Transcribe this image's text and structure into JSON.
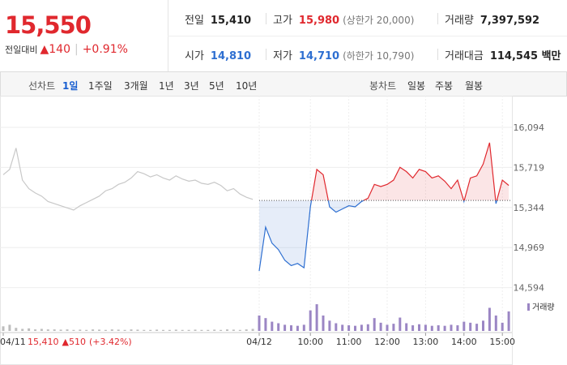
{
  "quote": {
    "price": "15,550",
    "change_label": "전일대비",
    "change": "▲140",
    "change_rate": "+0.91%"
  },
  "stats": [
    [
      {
        "label": "전일",
        "value": "15,410"
      },
      {
        "label": "고가",
        "value": "15,980",
        "note": "(상한가 20,000)"
      },
      {
        "label": "거래량",
        "value": "7,397,592"
      }
    ],
    [
      {
        "label": "시가",
        "value": "14,810"
      },
      {
        "label": "저가",
        "value": "14,710",
        "note": "(하한가 10,790)"
      },
      {
        "label": "거래대금",
        "value": "114,545 백만"
      }
    ]
  ],
  "tabs": {
    "line_label": "선차트",
    "periods": [
      "1일",
      "1주일",
      "3개월",
      "1년",
      "3년",
      "5년",
      "10년"
    ],
    "candle_label": "봉차트",
    "candle_periods": [
      "일봉",
      "주봉",
      "월봉"
    ]
  },
  "chart_data": {
    "type": "line",
    "categories": [
      "04/11",
      null,
      null,
      null,
      null,
      null,
      null,
      null,
      null,
      null,
      null,
      null,
      null,
      null,
      null,
      null,
      null,
      null,
      null,
      null,
      null,
      null,
      null,
      null,
      null,
      null,
      null,
      null,
      null,
      null,
      null,
      null,
      null,
      null,
      null,
      null,
      null,
      null,
      null,
      null,
      "04/12",
      null,
      null,
      null,
      null,
      null,
      null,
      null,
      "10:00",
      null,
      null,
      null,
      null,
      null,
      "11:00",
      null,
      null,
      null,
      null,
      null,
      "12:00",
      null,
      null,
      null,
      null,
      null,
      "13:00",
      null,
      null,
      null,
      null,
      null,
      "14:00",
      null,
      null,
      null,
      null,
      null,
      "15:00",
      null
    ],
    "series": [
      {
        "color": "#c8c8c8",
        "values": [
          15650,
          15700,
          15900,
          15600,
          15520,
          15480,
          15450,
          15400,
          15380,
          15360,
          15340,
          15320,
          15360,
          15390,
          15420,
          15450,
          15500,
          15520,
          15560,
          15580,
          15620,
          15680,
          15660,
          15630,
          15650,
          15620,
          15600,
          15640,
          15610,
          15590,
          15600,
          15570,
          15560,
          15580,
          15550,
          15500,
          15520,
          15470,
          15440,
          15420,
          null,
          null,
          null,
          null,
          null,
          null,
          null,
          null,
          null,
          null,
          null,
          null,
          null,
          null,
          null,
          null,
          null,
          null,
          null,
          null,
          null,
          null,
          null,
          null,
          null,
          null,
          null,
          null,
          null,
          null,
          null,
          null,
          null,
          null,
          null,
          null,
          null,
          null,
          null,
          null
        ]
      },
      {
        "color": "#e0282e",
        "down_color": "#2e6fd1",
        "values": [
          null,
          null,
          null,
          null,
          null,
          null,
          null,
          null,
          null,
          null,
          null,
          null,
          null,
          null,
          null,
          null,
          null,
          null,
          null,
          null,
          null,
          null,
          null,
          null,
          null,
          null,
          null,
          null,
          null,
          null,
          null,
          null,
          null,
          null,
          null,
          null,
          null,
          null,
          null,
          null,
          14750,
          15160,
          15010,
          14950,
          14850,
          14800,
          14820,
          14780,
          15350,
          15700,
          15650,
          15350,
          15300,
          15330,
          15360,
          15350,
          15400,
          15430,
          15560,
          15540,
          15560,
          15600,
          15720,
          15680,
          15620,
          15700,
          15680,
          15620,
          15640,
          15590,
          15520,
          15600,
          15400,
          15620,
          15640,
          15750,
          15950,
          15380,
          15600,
          15550
        ]
      }
    ],
    "reference_line": 15410,
    "ylim": [
      14500,
      16200
    ],
    "yticks": [
      {
        "value": 16094,
        "label": "16,094"
      },
      {
        "value": 15719,
        "label": "15,719"
      },
      {
        "value": 15344,
        "label": "15,344"
      },
      {
        "value": 14969,
        "label": "14,969"
      },
      {
        "value": 14594,
        "label": "14,594"
      }
    ],
    "volume": {
      "name": "거래량",
      "color": "#9b86c4",
      "prev_color": "#bdbdbd",
      "ylim": [
        0,
        600000
      ],
      "values": [
        90000,
        120000,
        60000,
        40000,
        50000,
        30000,
        40000,
        30000,
        30000,
        25000,
        30000,
        20000,
        25000,
        20000,
        30000,
        25000,
        20000,
        30000,
        25000,
        20000,
        30000,
        25000,
        20000,
        20000,
        25000,
        20000,
        20000,
        25000,
        20000,
        20000,
        25000,
        20000,
        20000,
        25000,
        20000,
        30000,
        25000,
        20000,
        30000,
        40000,
        300000,
        250000,
        180000,
        150000,
        120000,
        110000,
        100000,
        120000,
        400000,
        520000,
        300000,
        200000,
        150000,
        120000,
        110000,
        100000,
        120000,
        130000,
        250000,
        160000,
        120000,
        140000,
        260000,
        150000,
        110000,
        130000,
        120000,
        100000,
        110000,
        100000,
        120000,
        110000,
        180000,
        160000,
        140000,
        200000,
        450000,
        300000,
        160000,
        380000
      ]
    },
    "footer": {
      "price": "15,410",
      "change": "▲510",
      "rate": "(+3.42%)"
    },
    "grid": true
  }
}
